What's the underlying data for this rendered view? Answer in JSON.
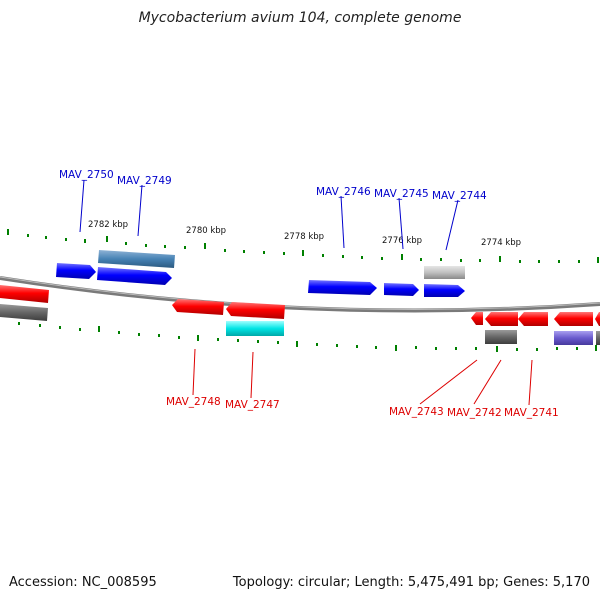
{
  "header": {
    "title": "Mycobacterium avium 104, complete genome"
  },
  "footer": {
    "accession": "Accession: NC_008595",
    "summary": "Topology: circular; Length: 5,475,491 bp; Genes: 5,170"
  },
  "map": {
    "kbp_labels": [
      "2782 kbp",
      "2780 kbp",
      "2778 kbp",
      "2776 kbp",
      "2774 kbp"
    ],
    "genes_top": [
      "MAV_2750",
      "MAV_2749",
      "MAV_2746",
      "MAV_2745",
      "MAV_2744"
    ],
    "genes_bottom": [
      "MAV_2748",
      "MAV_2747",
      "MAV_2743",
      "MAV_2742",
      "MAV_2741"
    ],
    "colors": {
      "forward_strand": "#0000ff",
      "reverse_strand": "#ff0000",
      "backbone": "#888888",
      "tick": "#008000",
      "cog_steelblue": "#4682b4",
      "cog_silver": "#c0c0c0",
      "cog_gray": "#666666",
      "cog_cyan": "#00e5e5",
      "cog_slateblue": "#6a5acd"
    }
  }
}
